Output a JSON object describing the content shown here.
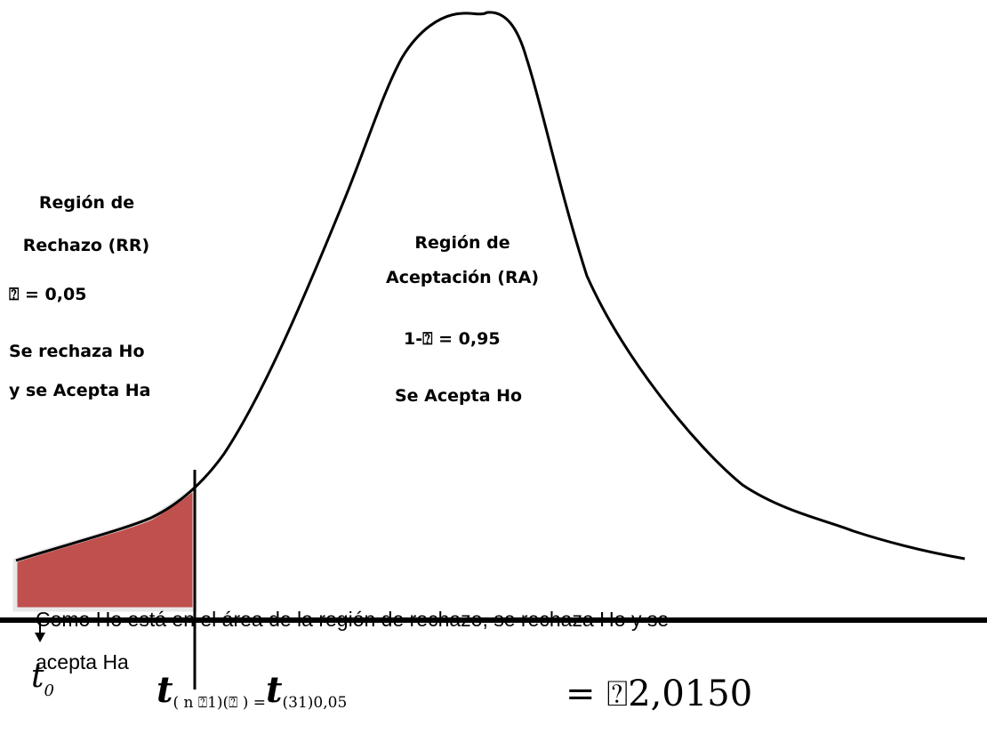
{
  "rejection_region": {
    "title_line1": "Región de",
    "title_line2": "Rechazo (RR)",
    "alpha": "⍰ = 0,05",
    "decision_line1": "Se rechaza Ho",
    "decision_line2": "y se Acepta Ha"
  },
  "acceptance_region": {
    "title_line1": "Región de",
    "title_line2": "Aceptación (RA)",
    "confidence": "1-⍰ = 0,95",
    "decision": "Se Acepta Ho"
  },
  "conclusion": {
    "line1": "Como Ho está en el área de la región de rechazo, se rechaza Ho y se",
    "line2": "acepta Ha"
  },
  "statistic": {
    "symbol": "t",
    "subscript": "0"
  },
  "critical_value": {
    "t_left": "t",
    "sub_left": "( n ⍰1)(⍰ ) =",
    "t_right": "t",
    "sub_right": "(31)0,05",
    "value": "= ⍰2,0150"
  },
  "colors": {
    "rejection_fill": "#c0504d",
    "curve": "#000000"
  }
}
